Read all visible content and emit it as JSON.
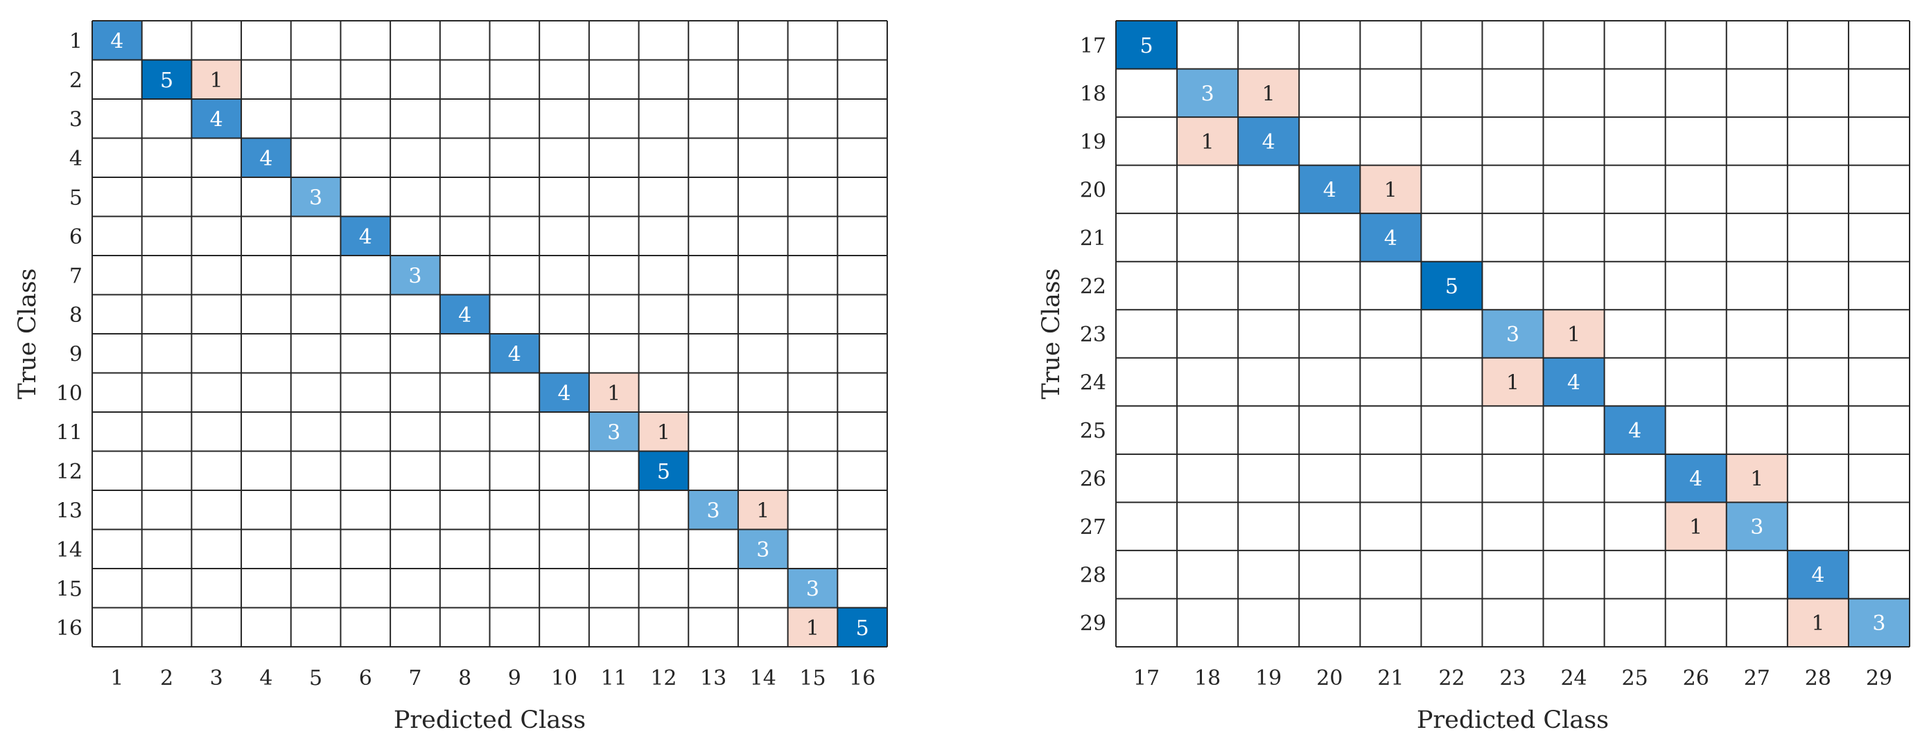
{
  "colors": {
    "high": "#0072bd",
    "mid": "#3d8fcf",
    "low": "#6aaddd",
    "offdiag": "#f8d8cc",
    "text_dark": "#262626",
    "text_light": "#ffffff",
    "grid": "#262626"
  },
  "chart_data": [
    {
      "type": "heatmap",
      "title": "",
      "xlabel": "Predicted Class",
      "ylabel": "True Class",
      "classes": [
        "1",
        "2",
        "3",
        "4",
        "5",
        "6",
        "7",
        "8",
        "9",
        "10",
        "11",
        "12",
        "13",
        "14",
        "15",
        "16"
      ],
      "cells": [
        {
          "true": "1",
          "pred": "1",
          "value": 4
        },
        {
          "true": "2",
          "pred": "2",
          "value": 5
        },
        {
          "true": "2",
          "pred": "3",
          "value": 1
        },
        {
          "true": "3",
          "pred": "3",
          "value": 4
        },
        {
          "true": "4",
          "pred": "4",
          "value": 4
        },
        {
          "true": "5",
          "pred": "5",
          "value": 3
        },
        {
          "true": "6",
          "pred": "6",
          "value": 4
        },
        {
          "true": "7",
          "pred": "7",
          "value": 3
        },
        {
          "true": "8",
          "pred": "8",
          "value": 4
        },
        {
          "true": "9",
          "pred": "9",
          "value": 4
        },
        {
          "true": "10",
          "pred": "10",
          "value": 4
        },
        {
          "true": "10",
          "pred": "11",
          "value": 1
        },
        {
          "true": "11",
          "pred": "11",
          "value": 3
        },
        {
          "true": "11",
          "pred": "12",
          "value": 1
        },
        {
          "true": "12",
          "pred": "12",
          "value": 5
        },
        {
          "true": "13",
          "pred": "13",
          "value": 3
        },
        {
          "true": "13",
          "pred": "14",
          "value": 1
        },
        {
          "true": "14",
          "pred": "14",
          "value": 3
        },
        {
          "true": "15",
          "pred": "15",
          "value": 3
        },
        {
          "true": "16",
          "pred": "15",
          "value": 1
        },
        {
          "true": "16",
          "pred": "16",
          "value": 5
        }
      ]
    },
    {
      "type": "heatmap",
      "title": "",
      "xlabel": "Predicted Class",
      "ylabel": "True Class",
      "classes": [
        "17",
        "18",
        "19",
        "20",
        "21",
        "22",
        "23",
        "24",
        "25",
        "26",
        "27",
        "28",
        "29"
      ],
      "cells": [
        {
          "true": "17",
          "pred": "17",
          "value": 5
        },
        {
          "true": "18",
          "pred": "18",
          "value": 3
        },
        {
          "true": "18",
          "pred": "19",
          "value": 1
        },
        {
          "true": "19",
          "pred": "18",
          "value": 1
        },
        {
          "true": "19",
          "pred": "19",
          "value": 4
        },
        {
          "true": "20",
          "pred": "20",
          "value": 4
        },
        {
          "true": "20",
          "pred": "21",
          "value": 1
        },
        {
          "true": "21",
          "pred": "21",
          "value": 4
        },
        {
          "true": "22",
          "pred": "22",
          "value": 5
        },
        {
          "true": "23",
          "pred": "23",
          "value": 3
        },
        {
          "true": "23",
          "pred": "24",
          "value": 1
        },
        {
          "true": "24",
          "pred": "23",
          "value": 1
        },
        {
          "true": "24",
          "pred": "24",
          "value": 4
        },
        {
          "true": "25",
          "pred": "25",
          "value": 4
        },
        {
          "true": "26",
          "pred": "26",
          "value": 4
        },
        {
          "true": "26",
          "pred": "27",
          "value": 1
        },
        {
          "true": "27",
          "pred": "26",
          "value": 1
        },
        {
          "true": "27",
          "pred": "27",
          "value": 3
        },
        {
          "true": "28",
          "pred": "28",
          "value": 4
        },
        {
          "true": "29",
          "pred": "28",
          "value": 1
        },
        {
          "true": "29",
          "pred": "29",
          "value": 3
        }
      ]
    }
  ]
}
